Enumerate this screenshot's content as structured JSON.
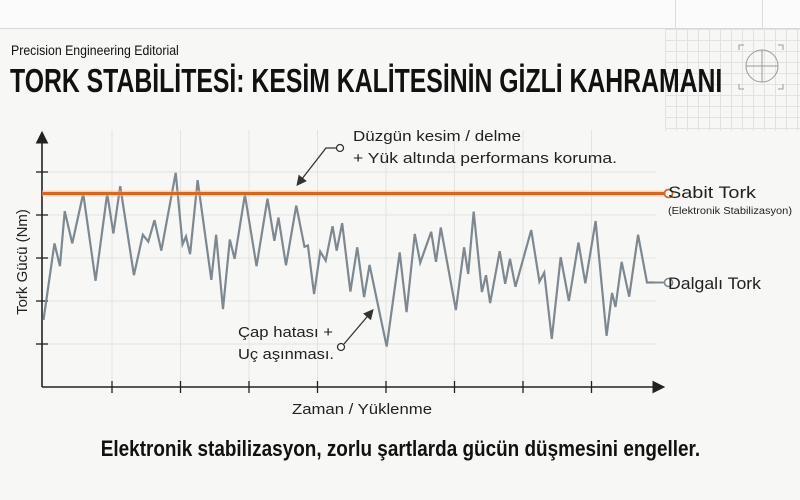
{
  "header": {
    "kicker": "Precision Engineering Editorial",
    "title": "TORK STABİLİTESİ: KESİM KALİTESİNİN GİZLİ KAHRAMANI",
    "decor_icon": "crosshair-icon"
  },
  "caption": "Elektronik stabilizasyon, zorlu şartlarda gücün düşmesini engeller.",
  "colors": {
    "steady": "#d9661f",
    "fluctuating": "#7d8890",
    "axis": "#222222"
  },
  "chart_data": {
    "type": "line",
    "title": "",
    "xlabel": "Zaman / Yüklenme",
    "ylabel": "Tork Gücü (Nm)",
    "xlim": [
      0,
      9
    ],
    "ylim": [
      0,
      6
    ],
    "x_ticks": [
      1,
      2,
      3,
      4,
      5,
      6,
      7,
      8
    ],
    "y_ticks": [
      1,
      2,
      3,
      4,
      5
    ],
    "tick_labels_shown": false,
    "grid": true,
    "series": [
      {
        "name": "Sabit Tork",
        "sublabel": "(Elektronik Stabilizasyon)",
        "color": "#d9661f",
        "x": [
          0,
          8.92
        ],
        "y": [
          4.5,
          4.5
        ]
      },
      {
        "name": "Dalgalı Tork",
        "color": "#7d8890",
        "x": [
          0,
          0.16,
          0.24,
          0.31,
          0.42,
          0.58,
          0.76,
          0.93,
          1.02,
          1.12,
          1.32,
          1.45,
          1.53,
          1.62,
          1.72,
          1.93,
          2.03,
          2.08,
          2.14,
          2.25,
          2.45,
          2.52,
          2.62,
          2.72,
          2.79,
          2.94,
          3.11,
          3.27,
          3.37,
          3.43,
          3.54,
          3.69,
          3.81,
          3.86,
          3.95,
          4.04,
          4.12,
          4.22,
          4.28,
          4.36,
          4.48,
          4.58,
          4.68,
          4.76,
          5.01,
          5.2,
          5.3,
          5.42,
          5.5,
          5.66,
          5.73,
          5.8,
          6.02,
          6.14,
          6.2,
          6.28,
          6.4,
          6.46,
          6.52,
          6.66,
          6.74,
          6.81,
          6.89,
          7.12,
          7.24,
          7.31,
          7.42,
          7.55,
          7.67,
          7.81,
          7.91,
          8.06,
          8.22,
          8.3,
          8.35,
          8.44,
          8.55,
          8.68,
          8.81,
          8.92
        ],
        "y": [
          1.56,
          3.34,
          2.81,
          4.09,
          3.34,
          4.5,
          2.47,
          4.5,
          3.57,
          4.67,
          2.6,
          3.54,
          3.38,
          3.88,
          3.17,
          4.98,
          3.32,
          3.5,
          3.09,
          4.81,
          2.49,
          3.54,
          1.81,
          3.43,
          2.98,
          4.47,
          2.81,
          4.38,
          3.4,
          3.94,
          2.83,
          4.22,
          3.26,
          3.29,
          2.16,
          3.15,
          2.94,
          3.74,
          3.17,
          3.81,
          2.22,
          3.25,
          2.09,
          2.84,
          0.94,
          3.13,
          1.74,
          3.56,
          2.89,
          3.61,
          2.91,
          3.71,
          1.79,
          3.25,
          2.63,
          4.08,
          2.21,
          2.6,
          1.95,
          3.16,
          2.4,
          2.98,
          2.33,
          3.65,
          2.45,
          2.66,
          1.12,
          3.02,
          2.0,
          3.36,
          2.41,
          3.86,
          1.19,
          2.19,
          1.86,
          2.91,
          2.1,
          3.54,
          2.43,
          2.43
        ]
      }
    ],
    "annotations": [
      {
        "lines": [
          "Düzgün kesim / delme",
          "+ Yük altında performans koruma."
        ],
        "points_to": "Sabit Tork"
      },
      {
        "lines": [
          "Çap hatası +",
          "Uç aşınması."
        ],
        "points_to": "Dalgalı Tork"
      }
    ]
  }
}
